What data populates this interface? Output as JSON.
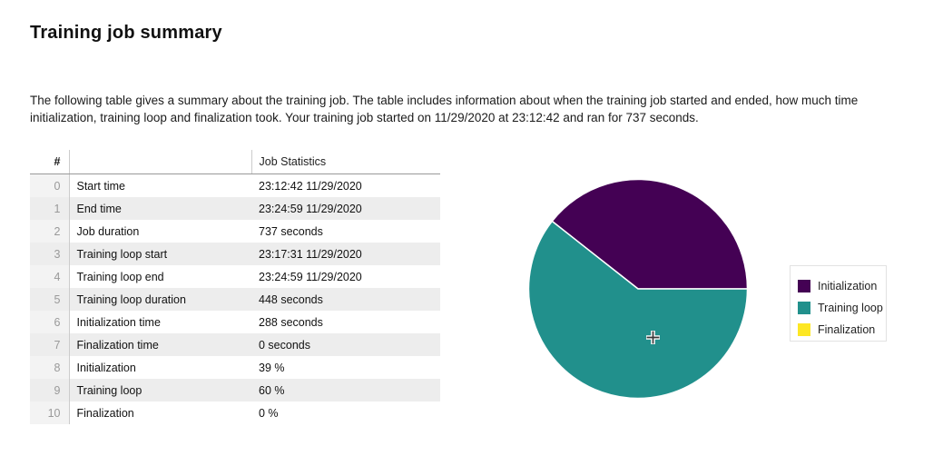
{
  "page": {
    "title": "Training job summary",
    "description": "The following table gives a summary about the training job. The table includes information about when the training job started and ended, how much time initialization, training loop and finalization took. Your training job started on 11/29/2020 at 23:12:42 and ran for 737 seconds."
  },
  "table": {
    "columns": [
      "#",
      "",
      "Job Statistics"
    ],
    "rows": [
      {
        "index": "0",
        "label": "Start time",
        "value": "23:12:42 11/29/2020"
      },
      {
        "index": "1",
        "label": "End time",
        "value": "23:24:59 11/29/2020"
      },
      {
        "index": "2",
        "label": "Job duration",
        "value": "737 seconds"
      },
      {
        "index": "3",
        "label": "Training loop start",
        "value": "23:17:31 11/29/2020"
      },
      {
        "index": "4",
        "label": "Training loop end",
        "value": "23:24:59 11/29/2020"
      },
      {
        "index": "5",
        "label": "Training loop duration",
        "value": "448 seconds"
      },
      {
        "index": "6",
        "label": "Initialization time",
        "value": "288 seconds"
      },
      {
        "index": "7",
        "label": "Finalization time",
        "value": "0 seconds"
      },
      {
        "index": "8",
        "label": "Initialization",
        "value": "39 %"
      },
      {
        "index": "9",
        "label": "Training loop",
        "value": "60 %"
      },
      {
        "index": "10",
        "label": "Finalization",
        "value": "0 %"
      }
    ]
  },
  "chart_data": {
    "type": "pie",
    "title": "",
    "categories": [
      "Initialization",
      "Training loop",
      "Finalization"
    ],
    "values": [
      39,
      60,
      0
    ],
    "unit": "%",
    "colors": [
      "#440154",
      "#21908C",
      "#FDE724"
    ],
    "slice_border_color": "#ffffff",
    "legend": [
      "Initialization",
      "Training loop",
      "Finalization"
    ],
    "legend_position": "right",
    "start_angle_deg": 0,
    "direction": "counterclockwise"
  },
  "cursor": {
    "type": "crosshair"
  }
}
